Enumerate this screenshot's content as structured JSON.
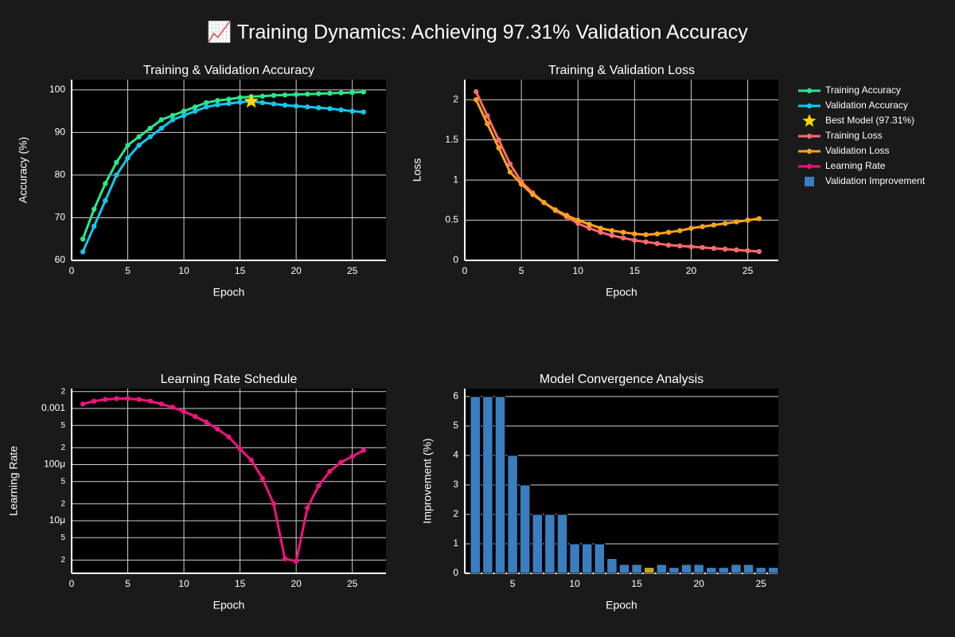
{
  "title": "📈 Training Dynamics: Achieving 97.31% Validation Accuracy",
  "legend": "outside-right",
  "chart_data": [
    {
      "type": "line",
      "title": "Training & Validation Accuracy",
      "x_label": "Epoch",
      "y_label": "Accuracy (%)",
      "x": [
        1,
        2,
        3,
        4,
        5,
        6,
        7,
        8,
        9,
        10,
        11,
        12,
        13,
        14,
        15,
        16,
        17,
        18,
        19,
        20,
        21,
        22,
        23,
        24,
        25,
        26
      ],
      "series": [
        {
          "name": "Training Accuracy",
          "color": "#2de58c",
          "values": [
            65,
            72,
            78,
            83,
            87,
            89,
            91,
            93,
            94,
            95,
            96,
            97,
            97.5,
            97.8,
            98.2,
            98.4,
            98.5,
            98.7,
            98.8,
            98.9,
            99.0,
            99.1,
            99.2,
            99.3,
            99.4,
            99.5
          ]
        },
        {
          "name": "Validation Accuracy",
          "color": "#12c8ef",
          "values": [
            62,
            68,
            74,
            80,
            84,
            87,
            89,
            91,
            93,
            94,
            95,
            96,
            96.5,
            96.8,
            97.1,
            97.31,
            97.0,
            96.7,
            96.4,
            96.2,
            96.0,
            95.8,
            95.6,
            95.3,
            95.0,
            94.8
          ]
        },
        {
          "name": "Best Model (97.31%)",
          "color": "#ffd700",
          "symbol": "star",
          "x": [
            16
          ],
          "values": [
            97.31
          ]
        }
      ],
      "xlim": [
        0,
        28
      ],
      "ylim": [
        60,
        102.4
      ],
      "xticks": [
        0,
        5,
        10,
        15,
        20,
        25
      ],
      "yticks": [
        60,
        70,
        80,
        90,
        100
      ],
      "grid": true
    },
    {
      "type": "line",
      "title": "Training & Validation Loss",
      "x_label": "Epoch",
      "y_label": "Loss",
      "x": [
        1,
        2,
        3,
        4,
        5,
        6,
        7,
        8,
        9,
        10,
        11,
        12,
        13,
        14,
        15,
        16,
        17,
        18,
        19,
        20,
        21,
        22,
        23,
        24,
        25,
        26
      ],
      "series": [
        {
          "name": "Training Loss",
          "color": "#ff6b6b",
          "values": [
            2.1,
            1.8,
            1.5,
            1.2,
            0.98,
            0.84,
            0.72,
            0.62,
            0.54,
            0.46,
            0.4,
            0.35,
            0.31,
            0.28,
            0.25,
            0.23,
            0.21,
            0.19,
            0.18,
            0.17,
            0.16,
            0.15,
            0.14,
            0.13,
            0.12,
            0.11
          ]
        },
        {
          "name": "Validation Loss",
          "color": "#ffa31a",
          "values": [
            2.0,
            1.7,
            1.4,
            1.1,
            0.95,
            0.82,
            0.72,
            0.63,
            0.56,
            0.5,
            0.45,
            0.4,
            0.37,
            0.35,
            0.33,
            0.32,
            0.33,
            0.35,
            0.37,
            0.4,
            0.42,
            0.44,
            0.46,
            0.48,
            0.5,
            0.52
          ]
        }
      ],
      "xlim": [
        0,
        27.7
      ],
      "ylim": [
        0,
        2.25
      ],
      "xticks": [
        0,
        5,
        10,
        15,
        20,
        25
      ],
      "yticks": [
        0,
        0.5,
        1,
        1.5,
        2
      ],
      "grid": true
    },
    {
      "type": "line",
      "title": "Learning Rate Schedule",
      "x_label": "Epoch",
      "y_label": "Learning Rate",
      "log_y": true,
      "x": [
        1,
        2,
        3,
        4,
        5,
        6,
        7,
        8,
        9,
        10,
        11,
        12,
        13,
        14,
        15,
        16,
        17,
        18,
        19,
        20,
        21,
        22,
        23,
        24,
        25,
        26
      ],
      "series": [
        {
          "name": "Learning Rate",
          "color": "#f0137f",
          "values": [
            0.0012,
            0.00135,
            0.00145,
            0.0015,
            0.0015,
            0.00145,
            0.00135,
            0.0012,
            0.00105,
            0.00088,
            0.00072,
            0.00057,
            0.00043,
            0.00031,
            0.00019,
            0.00012,
            5.7e-05,
            2e-05,
            2.1e-06,
            1.9e-06,
            1.7e-05,
            4.2e-05,
            7.6e-05,
            0.00011,
            0.00014,
            0.00018
          ]
        }
      ],
      "xlim": [
        0,
        28
      ],
      "ylim": [
        1.16e-06,
        0.00226
      ],
      "xticks": [
        0,
        5,
        10,
        15,
        20,
        25
      ],
      "yticks": [
        {
          "value": 0.002,
          "label": "2"
        },
        0.001,
        {
          "value": 0.0005,
          "label": "5"
        },
        {
          "value": 0.0002,
          "label": "2"
        },
        {
          "value": 0.0001,
          "label": "100μ"
        },
        {
          "value": 5e-05,
          "label": "5"
        },
        {
          "value": 2e-05,
          "label": "2"
        },
        {
          "value": 1e-05,
          "label": "10μ"
        },
        {
          "value": 5e-06,
          "label": "5"
        },
        {
          "value": 2e-06,
          "label": "2"
        }
      ],
      "grid": true
    },
    {
      "type": "bar",
      "title": "Model Convergence Analysis",
      "x_label": "Epoch",
      "y_label": "Improvement (%)",
      "x": [
        2,
        3,
        4,
        5,
        6,
        7,
        8,
        9,
        10,
        11,
        12,
        13,
        14,
        15,
        16,
        17,
        18,
        19,
        20,
        21,
        22,
        23,
        24,
        25,
        26
      ],
      "series": [
        {
          "name": "Validation Improvement",
          "color": "#3a7ebf",
          "values": [
            6,
            6,
            6,
            4,
            3,
            2,
            2,
            2,
            1,
            1,
            1,
            0.5,
            0.3,
            0.3,
            0.2,
            0.3,
            0.2,
            0.3,
            0.3,
            0.2,
            0.2,
            0.3,
            0.3,
            0.2,
            0.2
          ],
          "colors": [
            "#3a7ebf",
            "#3a7ebf",
            "#3a7ebf",
            "#3a7ebf",
            "#3a7ebf",
            "#3a7ebf",
            "#3a7ebf",
            "#3a7ebf",
            "#3a7ebf",
            "#3a7ebf",
            "#3a7ebf",
            "#3a7ebf",
            "#3a7ebf",
            "#3a7ebf",
            "#c4a52b",
            "#3a7ebf",
            "#3a7ebf",
            "#3a7ebf",
            "#3a7ebf",
            "#3a7ebf",
            "#3a7ebf",
            "#3a7ebf",
            "#3a7ebf",
            "#3a7ebf",
            "#3a7ebf"
          ]
        }
      ],
      "xlim": [
        1.15,
        26.4
      ],
      "ylim": [
        0,
        6.27
      ],
      "xticks": [
        5,
        10,
        15,
        20,
        25
      ],
      "yticks": [
        0,
        1,
        2,
        3,
        4,
        5,
        6
      ],
      "grid": "y"
    }
  ]
}
